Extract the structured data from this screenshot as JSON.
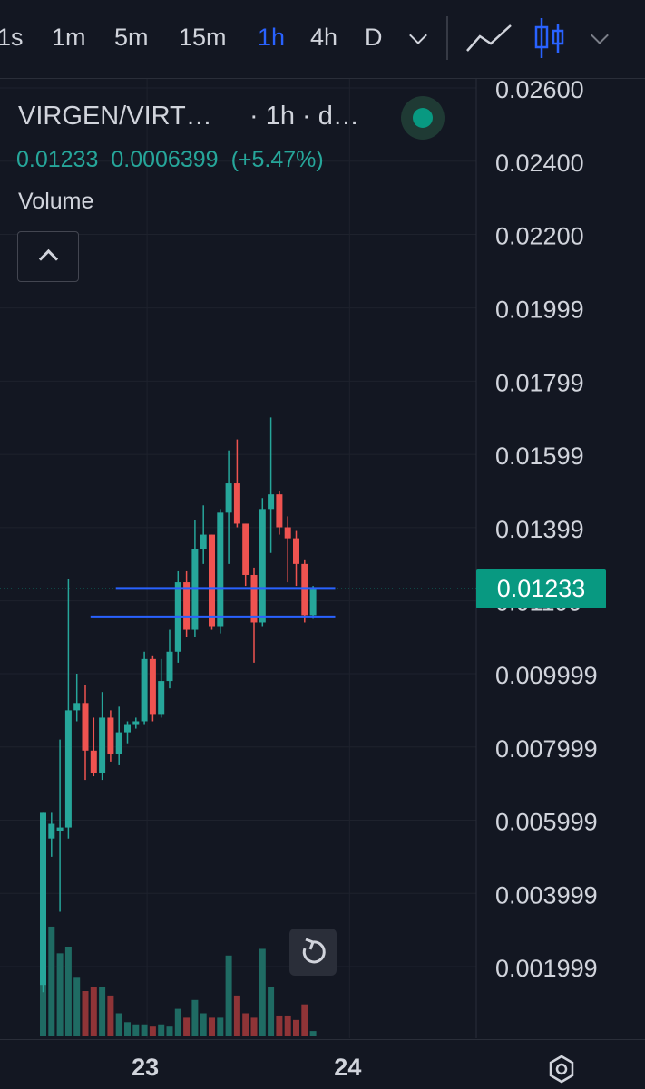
{
  "toolbar": {
    "timeframes": [
      "1s",
      "1m",
      "5m",
      "15m",
      "1h",
      "4h",
      "D"
    ],
    "active_timeframe": "1h",
    "accent": "#2962ff"
  },
  "legend": {
    "symbol": "VIRGEN/VIRT…",
    "interval_suffix": "· 1h · d…",
    "last": "0.01233",
    "change": "0.0006399",
    "change_pct": "(+5.47%)",
    "volume_label": "Volume",
    "status": "market-open"
  },
  "price_badge": "0.01233",
  "colors": {
    "up": "#26a69a",
    "down": "#ef5350",
    "vol_up": "#1f6b63",
    "vol_down": "#8f3437",
    "hline": "#2962ff",
    "background": "#131722"
  },
  "chart_data": {
    "type": "candlestick",
    "interval": "1h",
    "x_ticks": [
      {
        "label": "23",
        "bar": 12.7
      },
      {
        "label": "24",
        "bar": 36.7
      }
    ],
    "y_ticks": [
      "0.02600",
      "0.02400",
      "0.02200",
      "0.01999",
      "0.01799",
      "0.01599",
      "0.01399",
      "0.01199",
      "0.009999",
      "0.007999",
      "0.005999",
      "0.003999",
      "0.001999"
    ],
    "ylim": [
      0.0003,
      0.0272
    ],
    "last_price": 0.01233,
    "horizontal_lines": [
      {
        "value": 0.01233,
        "from_bar": 9,
        "to_bar": 35
      },
      {
        "value": 0.01155,
        "from_bar": 6,
        "to_bar": 35
      }
    ],
    "candles": [
      {
        "o": 0.0015,
        "h": 0.0062,
        "l": 0.0013,
        "c": 0.0062,
        "v": 0.52
      },
      {
        "o": 0.0055,
        "h": 0.0062,
        "l": 0.005,
        "c": 0.0059,
        "v": 0.49
      },
      {
        "o": 0.0057,
        "h": 0.0082,
        "l": 0.0035,
        "c": 0.0058,
        "v": 0.37
      },
      {
        "o": 0.0058,
        "h": 0.0126,
        "l": 0.0055,
        "c": 0.009,
        "v": 0.4
      },
      {
        "o": 0.009,
        "h": 0.01,
        "l": 0.0087,
        "c": 0.0092,
        "v": 0.26
      },
      {
        "o": 0.0092,
        "h": 0.0097,
        "l": 0.0071,
        "c": 0.0079,
        "v": 0.2
      },
      {
        "o": 0.0079,
        "h": 0.0088,
        "l": 0.0072,
        "c": 0.0073,
        "v": 0.22
      },
      {
        "o": 0.0073,
        "h": 0.0095,
        "l": 0.0071,
        "c": 0.0088,
        "v": 0.22
      },
      {
        "o": 0.0088,
        "h": 0.009,
        "l": 0.0076,
        "c": 0.0078,
        "v": 0.18
      },
      {
        "o": 0.0078,
        "h": 0.0091,
        "l": 0.0075,
        "c": 0.0084,
        "v": 0.1
      },
      {
        "o": 0.0084,
        "h": 0.0087,
        "l": 0.0081,
        "c": 0.0086,
        "v": 0.06
      },
      {
        "o": 0.0086,
        "h": 0.0088,
        "l": 0.0085,
        "c": 0.0087,
        "v": 0.05
      },
      {
        "o": 0.0087,
        "h": 0.0106,
        "l": 0.0086,
        "c": 0.0104,
        "v": 0.05
      },
      {
        "o": 0.0104,
        "h": 0.0105,
        "l": 0.0087,
        "c": 0.0089,
        "v": 0.04
      },
      {
        "o": 0.0089,
        "h": 0.0104,
        "l": 0.0088,
        "c": 0.0098,
        "v": 0.05
      },
      {
        "o": 0.0098,
        "h": 0.0112,
        "l": 0.0096,
        "c": 0.0106,
        "v": 0.04
      },
      {
        "o": 0.0106,
        "h": 0.0128,
        "l": 0.0103,
        "c": 0.0125,
        "v": 0.12
      },
      {
        "o": 0.0125,
        "h": 0.0128,
        "l": 0.011,
        "c": 0.0112,
        "v": 0.08
      },
      {
        "o": 0.0112,
        "h": 0.0142,
        "l": 0.011,
        "c": 0.0134,
        "v": 0.16
      },
      {
        "o": 0.0134,
        "h": 0.0146,
        "l": 0.013,
        "c": 0.0138,
        "v": 0.1
      },
      {
        "o": 0.0138,
        "h": 0.0138,
        "l": 0.0112,
        "c": 0.0113,
        "v": 0.08
      },
      {
        "o": 0.0113,
        "h": 0.0145,
        "l": 0.0111,
        "c": 0.0144,
        "v": 0.08
      },
      {
        "o": 0.0144,
        "h": 0.0161,
        "l": 0.013,
        "c": 0.0152,
        "v": 0.36
      },
      {
        "o": 0.0152,
        "h": 0.0164,
        "l": 0.014,
        "c": 0.0141,
        "v": 0.18
      },
      {
        "o": 0.0141,
        "h": 0.0141,
        "l": 0.0124,
        "c": 0.0127,
        "v": 0.1
      },
      {
        "o": 0.0127,
        "h": 0.0129,
        "l": 0.0103,
        "c": 0.0114,
        "v": 0.08
      },
      {
        "o": 0.0114,
        "h": 0.0148,
        "l": 0.0113,
        "c": 0.0145,
        "v": 0.39
      },
      {
        "o": 0.0145,
        "h": 0.017,
        "l": 0.0133,
        "c": 0.0149,
        "v": 0.22
      },
      {
        "o": 0.0149,
        "h": 0.015,
        "l": 0.0138,
        "c": 0.014,
        "v": 0.09
      },
      {
        "o": 0.014,
        "h": 0.0143,
        "l": 0.0125,
        "c": 0.0137,
        "v": 0.09
      },
      {
        "o": 0.0137,
        "h": 0.0139,
        "l": 0.0124,
        "c": 0.013,
        "v": 0.07
      },
      {
        "o": 0.013,
        "h": 0.0131,
        "l": 0.0114,
        "c": 0.0116,
        "v": 0.14
      },
      {
        "o": 0.0116,
        "h": 0.0124,
        "l": 0.0115,
        "c": 0.0123,
        "v": 0.02
      }
    ]
  }
}
